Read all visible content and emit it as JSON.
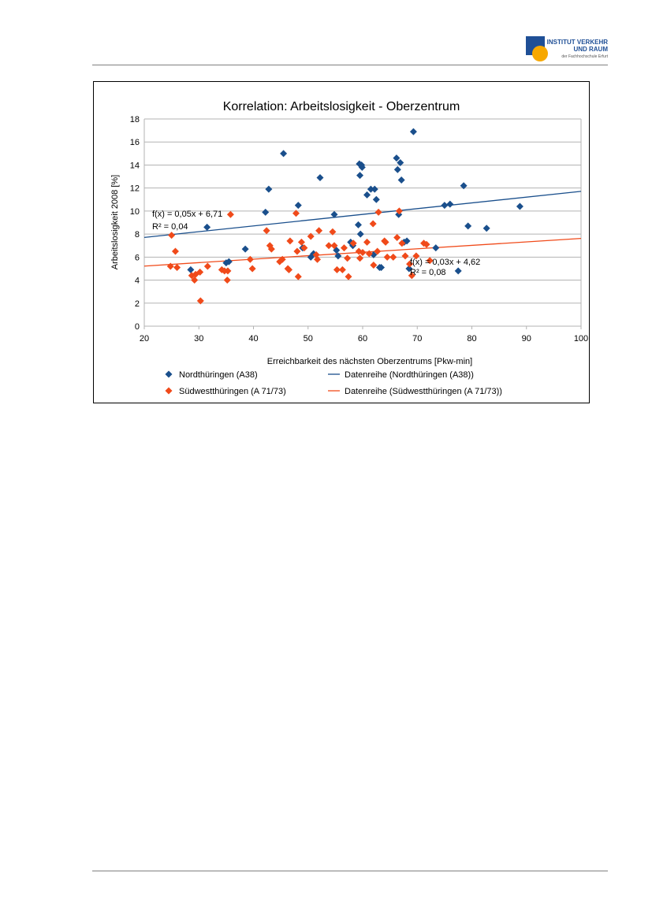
{
  "logo": {
    "line1": "INSTITUT VERKEHR",
    "line2": "UND RAUM",
    "line3": "der Fachhochschule Erfurt",
    "colors": {
      "blue": "#1f4f96",
      "orange": "#f7a800"
    }
  },
  "chart_data": {
    "type": "scatter",
    "title": "Korrelation: Arbeitslosigkeit - Oberzentrum",
    "xlabel": "Erreichbarkeit des nächsten Oberzentrums [Pkw-min]",
    "ylabel": "Arbeitslosigkeit 2008 [%]",
    "xlim": [
      20,
      100
    ],
    "ylim": [
      0,
      18
    ],
    "xticks": [
      20,
      30,
      40,
      50,
      60,
      70,
      80,
      90,
      100
    ],
    "yticks": [
      0,
      2,
      4,
      6,
      8,
      10,
      12,
      14,
      16,
      18
    ],
    "grid": "horizontal",
    "legend_position": "bottom",
    "series": [
      {
        "name": "Nordthüringen (A38)",
        "color": "#1a4f8c",
        "marker": "diamond",
        "points": [
          [
            28.5,
            4.9
          ],
          [
            31.5,
            8.6
          ],
          [
            35,
            5.5
          ],
          [
            35.5,
            5.6
          ],
          [
            38.5,
            6.7
          ],
          [
            42.2,
            9.9
          ],
          [
            42.8,
            11.9
          ],
          [
            45.5,
            15.0
          ],
          [
            48.2,
            10.5
          ],
          [
            49,
            6.8
          ],
          [
            50.5,
            6.0
          ],
          [
            51,
            6.3
          ],
          [
            52.2,
            12.9
          ],
          [
            54.8,
            9.7
          ],
          [
            55.2,
            6.6
          ],
          [
            55.5,
            6.1
          ],
          [
            57.8,
            7.3
          ],
          [
            58.2,
            7.0
          ],
          [
            59.2,
            8.8
          ],
          [
            59.4,
            14.1
          ],
          [
            59.5,
            13.1
          ],
          [
            59.8,
            14.0
          ],
          [
            59.9,
            13.8
          ],
          [
            59.6,
            8.0
          ],
          [
            60.8,
            11.4
          ],
          [
            61.5,
            11.9
          ],
          [
            62.2,
            11.9
          ],
          [
            62.5,
            11.0
          ],
          [
            62.0,
            6.2
          ],
          [
            63.1,
            5.1
          ],
          [
            63.4,
            5.1
          ],
          [
            66.2,
            14.6
          ],
          [
            66.4,
            13.6
          ],
          [
            66.6,
            9.7
          ],
          [
            66.9,
            14.2
          ],
          [
            67.1,
            12.7
          ],
          [
            67.6,
            7.3
          ],
          [
            68.1,
            7.4
          ],
          [
            68.5,
            5.0
          ],
          [
            69.3,
            16.9
          ],
          [
            73.4,
            6.8
          ],
          [
            75.0,
            10.5
          ],
          [
            76.0,
            10.6
          ],
          [
            77.5,
            4.8
          ],
          [
            78.5,
            12.2
          ],
          [
            79.3,
            8.7
          ],
          [
            82.7,
            8.5
          ],
          [
            88.8,
            10.4
          ]
        ],
        "trendline": {
          "name": "Datenreihe (Nordthüringen (A38))",
          "slope": 0.05,
          "intercept": 6.71,
          "equation": "f(x) = 0,05x + 6,71",
          "r2": "R² = 0,04",
          "color": "#1a4f8c"
        }
      },
      {
        "name": "Südwestthüringen (A 71/73)",
        "color": "#f04a1a",
        "marker": "diamond",
        "points": [
          [
            24.8,
            5.2
          ],
          [
            25.0,
            7.9
          ],
          [
            25.7,
            6.5
          ],
          [
            26.0,
            5.1
          ],
          [
            28.7,
            4.4
          ],
          [
            29.2,
            4.0
          ],
          [
            29.4,
            4.5
          ],
          [
            30.2,
            4.7
          ],
          [
            30.3,
            2.2
          ],
          [
            31.6,
            5.2
          ],
          [
            34.2,
            4.9
          ],
          [
            34.7,
            4.8
          ],
          [
            35.2,
            4.0
          ],
          [
            35.3,
            4.8
          ],
          [
            35.8,
            9.7
          ],
          [
            39.4,
            5.8
          ],
          [
            39.8,
            5.0
          ],
          [
            42.4,
            8.3
          ],
          [
            43.0,
            7.0
          ],
          [
            43.3,
            6.7
          ],
          [
            44.8,
            5.6
          ],
          [
            45.3,
            5.8
          ],
          [
            46.3,
            5.0
          ],
          [
            46.5,
            4.9
          ],
          [
            46.7,
            7.4
          ],
          [
            47.8,
            9.8
          ],
          [
            48.0,
            6.5
          ],
          [
            48.2,
            4.3
          ],
          [
            48.8,
            7.3
          ],
          [
            49.3,
            6.8
          ],
          [
            50.5,
            7.8
          ],
          [
            51.5,
            6.2
          ],
          [
            51.7,
            5.8
          ],
          [
            52.0,
            8.3
          ],
          [
            53.8,
            7.0
          ],
          [
            54.5,
            8.2
          ],
          [
            54.8,
            7.0
          ],
          [
            55.3,
            4.9
          ],
          [
            56.3,
            4.9
          ],
          [
            56.6,
            6.8
          ],
          [
            57.2,
            5.9
          ],
          [
            57.4,
            4.3
          ],
          [
            58.3,
            7.2
          ],
          [
            59.3,
            6.5
          ],
          [
            59.5,
            5.9
          ],
          [
            60.0,
            6.4
          ],
          [
            60.8,
            7.3
          ],
          [
            61.2,
            6.3
          ],
          [
            61.9,
            8.9
          ],
          [
            62.0,
            5.3
          ],
          [
            62.7,
            6.5
          ],
          [
            62.9,
            9.9
          ],
          [
            64.0,
            7.4
          ],
          [
            64.2,
            7.3
          ],
          [
            64.5,
            6.0
          ],
          [
            65.6,
            6.0
          ],
          [
            66.3,
            7.7
          ],
          [
            66.7,
            10.0
          ],
          [
            67.2,
            7.2
          ],
          [
            67.8,
            6.1
          ],
          [
            68.6,
            5.4
          ],
          [
            69.0,
            4.4
          ],
          [
            69.8,
            6.1
          ],
          [
            71.2,
            7.2
          ],
          [
            71.7,
            7.1
          ],
          [
            72.3,
            5.7
          ]
        ],
        "trendline": {
          "name": "Datenreihe (Südwestthüringen (A 71/73))",
          "slope": 0.03,
          "intercept": 4.62,
          "equation": "f(x) = 0,03x + 4,62",
          "r2": "R² = 0,08",
          "color": "#f04a1a"
        }
      }
    ]
  }
}
